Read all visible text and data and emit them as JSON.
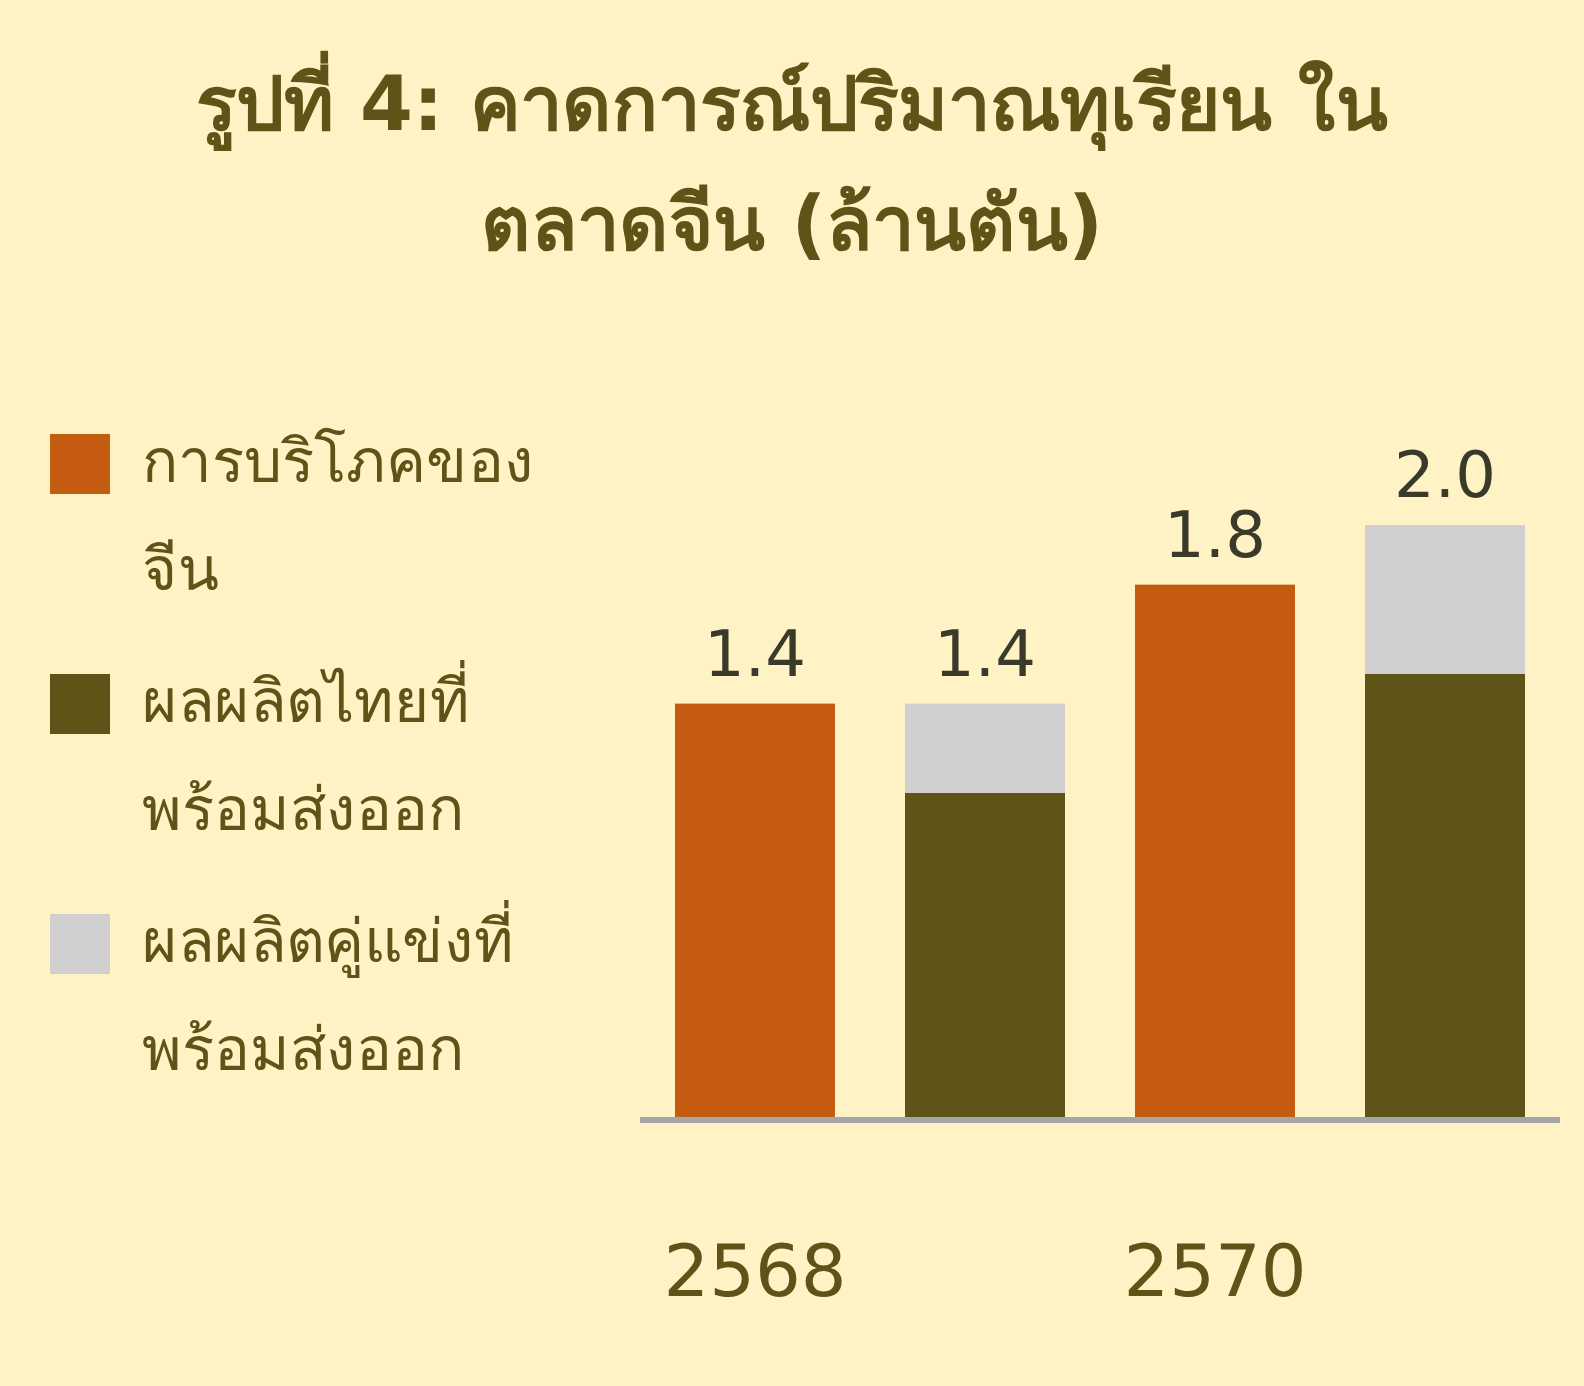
{
  "chart_data": {
    "type": "bar",
    "title": "รูปที่ 4: คาดการณ์ปริมาณทุเรียน ในตลาดจีน (ล้านตัน)",
    "categories": [
      "2568",
      null,
      "2570",
      null
    ],
    "stacked": true,
    "legend": "left",
    "totals": [
      null,
      "1.4",
      null,
      "2.0"
    ],
    "series": [
      {
        "name": "การบริโภคของจีน",
        "color": "#c55a11",
        "values": [
          1.4,
          null,
          1.8,
          null
        ],
        "value_labels": [
          "1.4",
          null,
          "1.8",
          null
        ]
      },
      {
        "name": "ผลผลิตไทยที่พร้อมส่งออก",
        "color": "#5f5418",
        "values": [
          null,
          1.1,
          null,
          1.5
        ]
      },
      {
        "name": "ผลผลิตคู่แข่งที่พร้อมส่งออก",
        "color": "#d0cece",
        "values": [
          null,
          0.3,
          null,
          0.5
        ]
      }
    ]
  }
}
